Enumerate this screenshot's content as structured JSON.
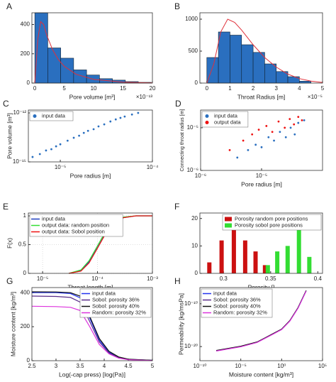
{
  "chart_data": [
    {
      "type": "histogram",
      "label": "A",
      "xlabel": "Pore volume [m³]",
      "x_exponent": "×10⁻¹³",
      "xlim": [
        -0.5,
        20
      ],
      "xticks": [
        0,
        5,
        10,
        15,
        20
      ],
      "ylim": [
        0,
        480
      ],
      "yticks": [
        0,
        200,
        400
      ],
      "bins": [
        0,
        2.2,
        4.4,
        6.6,
        8.8,
        11,
        13.2,
        15.4,
        17.6,
        19.8
      ],
      "counts": [
        480,
        240,
        170,
        90,
        55,
        30,
        20,
        10,
        5
      ],
      "color": "#2a6fbf",
      "fit": {
        "color": "#e0303a",
        "x": [
          0,
          0.5,
          1,
          1.5,
          2,
          3,
          4,
          5,
          7,
          10,
          15,
          20
        ],
        "values": [
          0,
          300,
          420,
          400,
          330,
          230,
          160,
          115,
          60,
          25,
          6,
          1
        ]
      }
    },
    {
      "type": "histogram",
      "label": "B",
      "xlabel": "Throat Radius [m]",
      "x_exponent": "×10⁻⁵",
      "xlim": [
        -0.3,
        5
      ],
      "xticks": [
        0,
        1,
        2,
        3,
        4,
        5
      ],
      "ylim": [
        0,
        1100
      ],
      "yticks": [
        0,
        500,
        1000
      ],
      "bins": [
        0,
        0.5,
        1,
        1.5,
        2,
        2.5,
        3,
        3.5,
        4,
        4.5
      ],
      "counts": [
        400,
        800,
        750,
        600,
        480,
        300,
        180,
        100,
        30
      ],
      "color": "#2a6fbf",
      "fit": {
        "color": "#e0303a",
        "x": [
          0,
          0.3,
          0.6,
          0.9,
          1.2,
          1.5,
          2,
          2.5,
          3,
          3.5,
          4,
          4.5,
          5
        ],
        "values": [
          0,
          300,
          800,
          1000,
          950,
          830,
          600,
          400,
          250,
          140,
          70,
          30,
          10
        ]
      }
    },
    {
      "type": "scatter",
      "label": "C",
      "xlabel": "Pore radius [m]",
      "ylabel": "Pore volume [m³]",
      "xscale": "log",
      "yscale": "log",
      "legend": "upper left",
      "xlim": [
        4.5e-06,
        0.0001
      ],
      "xticks": [
        {
          "value": 1e-05,
          "label": "10⁻⁵"
        },
        {
          "value": 0.0001,
          "label": "10⁻⁴"
        }
      ],
      "ylim": [
        1e-15,
        1.5e-12
      ],
      "yticks": [
        {
          "value": 1e-15,
          "label": "10⁻¹⁵"
        },
        {
          "value": 1e-12,
          "label": "10⁻¹²"
        }
      ],
      "series": [
        {
          "name": "input data",
          "color": "#2a6fbf",
          "x": [
            5e-06,
            6e-06,
            7e-06,
            8e-06,
            9e-06,
            1e-05,
            1.2e-05,
            1.4e-05,
            1.6e-05,
            1.8e-05,
            2e-05,
            2.3e-05,
            2.6e-05,
            3e-05,
            3.5e-05,
            4e-05,
            4.5e-05,
            5e-05,
            6e-05,
            7e-05
          ],
          "values": [
            2e-15,
            3e-15,
            5e-15,
            6e-15,
            9e-15,
            1.2e-14,
            2e-14,
            3e-14,
            4e-14,
            6e-14,
            8e-14,
            1e-13,
            1.5e-13,
            2e-13,
            3e-13,
            4e-13,
            5e-13,
            6e-13,
            8e-13,
            1e-12
          ]
        }
      ]
    },
    {
      "type": "scatter",
      "label": "D",
      "xlabel": "Pore radius [m]",
      "ylabel": "Connecting throat radius [m]",
      "xscale": "log",
      "yscale": "log",
      "legend": "upper left",
      "xlim": [
        1e-06,
        0.0001
      ],
      "xticks": [
        {
          "value": 1e-06,
          "label": "10⁻⁶"
        },
        {
          "value": 1e-05,
          "label": "10⁻⁵"
        }
      ],
      "ylim": [
        1e-06,
        2.6e-05
      ],
      "yticks": [
        {
          "value": 1e-06,
          "label": "10⁻⁶"
        },
        {
          "value": 1e-05,
          "label": "10⁻⁵"
        }
      ],
      "series": [
        {
          "name": "input data",
          "color": "#2a6fbf",
          "x": [
            4e-06,
            6e-06,
            8e-06,
            1e-05,
            1.3e-05,
            1.6e-05,
            2e-05,
            2.5e-05,
            3e-05,
            3.5e-05,
            4e-05,
            5e-05
          ],
          "values": [
            2e-06,
            3e-06,
            4e-06,
            3.5e-06,
            6e-06,
            5e-06,
            8e-06,
            6e-06,
            1e-05,
            7e-06,
            1.3e-05,
            1.5e-05
          ]
        },
        {
          "name": "output data",
          "color": "#ee1111",
          "x": [
            3e-06,
            5e-06,
            7e-06,
            9e-06,
            1.2e-05,
            1.5e-05,
            1.9e-05,
            2.4e-05,
            2.9e-05,
            3.4e-05,
            4e-05,
            4.6e-05
          ],
          "values": [
            3e-06,
            5e-06,
            7e-06,
            9e-06,
            1.1e-05,
            8e-06,
            1.4e-05,
            1e-05,
            1.6e-05,
            1.2e-05,
            1.8e-05,
            1.5e-05
          ]
        }
      ]
    },
    {
      "type": "line",
      "label": "E",
      "xlabel": "Throat length [m]",
      "ylabel": "F(x)",
      "xscale": "log",
      "legend": "upper left",
      "grid": true,
      "xlim": [
        5.5e-06,
        0.001
      ],
      "xticks": [
        {
          "value": 1e-05,
          "label": "10⁻⁵"
        },
        {
          "value": 0.0001,
          "label": "10⁻⁴"
        },
        {
          "value": 0.001,
          "label": "10⁻³"
        }
      ],
      "ylim": [
        0,
        1.05
      ],
      "yticks": [
        0,
        0.5,
        1
      ],
      "x": [
        3e-05,
        5e-05,
        7e-05,
        0.0001,
        0.00015,
        0.0002,
        0.0003,
        0.0005,
        0.001
      ],
      "series": [
        {
          "name": "input data",
          "color": "#1f3fbf",
          "values": [
            0,
            0.05,
            0.2,
            0.45,
            0.75,
            0.9,
            0.97,
            1,
            1
          ]
        },
        {
          "name": "output data: random position",
          "color": "#33dd33",
          "values": [
            0,
            0.06,
            0.22,
            0.48,
            0.78,
            0.92,
            0.98,
            1,
            1
          ]
        },
        {
          "name": "output data: Sobol position",
          "color": "#ee1111",
          "values": [
            0,
            0.04,
            0.18,
            0.44,
            0.74,
            0.89,
            0.97,
            1,
            1
          ]
        }
      ]
    },
    {
      "type": "bar",
      "label": "F",
      "xlabel": "Porosity []",
      "legend": "upper right",
      "xlim": [
        0.275,
        0.405
      ],
      "xticks": [
        0.3,
        0.35,
        0.4
      ],
      "ylim": [
        0,
        22
      ],
      "yticks": [
        0,
        10,
        20
      ],
      "series": [
        {
          "name": "Porosity random pore positions",
          "color": "#cc1111",
          "x": [
            0.285,
            0.298,
            0.311,
            0.323,
            0.334,
            0.344
          ],
          "values": [
            4,
            12,
            17,
            12,
            8,
            3
          ]
        },
        {
          "name": "Porosity sobol pore positions",
          "color": "#33dd33",
          "x": [
            0.347,
            0.357,
            0.368,
            0.38,
            0.391
          ],
          "values": [
            3,
            8,
            10,
            17,
            6
          ]
        }
      ]
    },
    {
      "type": "line",
      "label": "G",
      "xlabel": "Log(-cap press) [log(Pa)]",
      "ylabel": "Moisture content [kg/m³]",
      "legend": "upper right",
      "xlim": [
        2.5,
        5
      ],
      "xticks": [
        2.5,
        3,
        3.5,
        4,
        4.5,
        5
      ],
      "ylim": [
        0,
        430
      ],
      "yticks": [
        0,
        200,
        400
      ],
      "x": [
        2.5,
        3,
        3.3,
        3.5,
        3.7,
        3.9,
        4.1,
        4.3,
        4.5,
        5
      ],
      "series": [
        {
          "name": "input data",
          "color": "#2233ee",
          "values": [
            400,
            400,
            395,
            370,
            250,
            120,
            50,
            20,
            8,
            2
          ]
        },
        {
          "name": "Sobol: porosity 36%",
          "color": "#5a2d8a",
          "values": [
            380,
            378,
            372,
            345,
            230,
            110,
            45,
            18,
            7,
            2
          ]
        },
        {
          "name": "Sobol: porosity 40%",
          "color": "#111111",
          "values": [
            405,
            404,
            400,
            380,
            260,
            130,
            55,
            22,
            9,
            2
          ]
        },
        {
          "name": "Random: porosity 32%",
          "color": "#dd33dd",
          "values": [
            320,
            318,
            314,
            295,
            200,
            95,
            40,
            15,
            6,
            1
          ]
        }
      ]
    },
    {
      "type": "line",
      "label": "H",
      "xlabel": "Moisture content [kg/m³]",
      "ylabel": "Permeability [kg/msPa]",
      "xscale": "log",
      "yscale": "log",
      "legend": "upper left",
      "xlim": [
        1e-10,
        100000.0
      ],
      "xticks": [
        {
          "value": 1e-10,
          "label": "10⁻¹⁰"
        },
        {
          "value": 1e-05,
          "label": "10⁻⁵"
        },
        {
          "value": 1,
          "label": "10⁰"
        },
        {
          "value": 100000.0,
          "label": "10⁵"
        }
      ],
      "ylim": [
        5e-24,
        6e-07
      ],
      "yticks": [
        {
          "value": 1e-20,
          "label": "10⁻²⁰"
        },
        {
          "value": 1e-10,
          "label": "10⁻¹⁰"
        }
      ],
      "x": [
        1e-08,
        1e-05,
        0.001,
        0.01,
        0.1,
        1,
        10,
        100,
        1000
      ],
      "series": [
        {
          "name": "input data",
          "color": "#2233ee",
          "values": [
            1e-21,
            1e-20,
            1e-19,
            1e-18,
            1e-17,
            1e-16,
            1e-14,
            1e-11,
            1e-07
          ]
        },
        {
          "name": "Sobol: porosity 36%",
          "color": "#5a2d8a",
          "values": [
            1.1e-21,
            1.1e-20,
            1.1e-19,
            1.1e-18,
            1.1e-17,
            1.1e-16,
            1.1e-14,
            1.1e-11,
            1.1e-07
          ]
        },
        {
          "name": "Sobol: porosity 40%",
          "color": "#111111",
          "values": [
            1.2e-21,
            1.2e-20,
            1.2e-19,
            1.2e-18,
            1.2e-17,
            1.2e-16,
            1.2e-14,
            1.2e-11,
            1.2e-07
          ]
        },
        {
          "name": "Random: porosity 32%",
          "color": "#dd33dd",
          "values": [
            9e-22,
            9e-21,
            9e-20,
            9e-19,
            9e-18,
            9e-17,
            9e-15,
            9e-12,
            9e-08
          ]
        }
      ]
    }
  ]
}
